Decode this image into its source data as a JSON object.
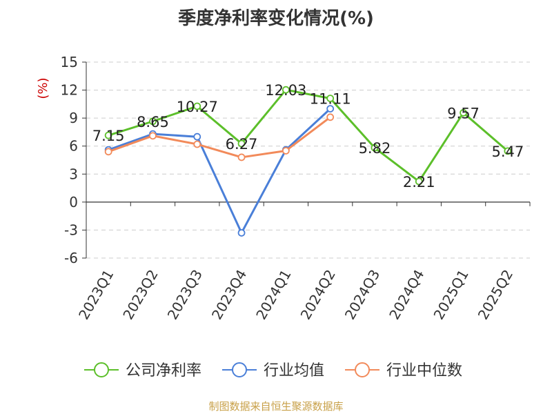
{
  "title": "季度净利率变化情况(%)",
  "source": "制图数据来自恒生聚源数据库",
  "chart_data": {
    "type": "line",
    "title": "季度净利率变化情况(%)",
    "ylabel": "(%)",
    "ylim": [
      -6,
      15
    ],
    "yticks": [
      -6,
      -3,
      0,
      3,
      6,
      9,
      12,
      15
    ],
    "grid": true,
    "legend_position": "bottom",
    "categories": [
      "2023Q1",
      "2023Q2",
      "2023Q3",
      "2023Q4",
      "2024Q1",
      "2024Q2",
      "2024Q3",
      "2024Q4",
      "2025Q1",
      "2025Q2"
    ],
    "series": [
      {
        "name": "公司净利率",
        "color": "#5cbf2a",
        "values": [
          7.15,
          8.65,
          10.27,
          6.27,
          12.03,
          11.11,
          5.82,
          2.21,
          9.57,
          5.47
        ],
        "labels": [
          "7.15",
          "8.65",
          "10.27",
          "6.27",
          "12.03",
          "11.11",
          "5.82",
          "2.21",
          "9.57",
          "5.47"
        ]
      },
      {
        "name": "行业均值",
        "color": "#4a7fd8",
        "values": [
          5.6,
          7.3,
          7.0,
          -3.3,
          5.6,
          10.0,
          null,
          null,
          null,
          null
        ]
      },
      {
        "name": "行业中位数",
        "color": "#f28a5a",
        "values": [
          5.4,
          7.1,
          6.2,
          4.8,
          5.5,
          9.1,
          null,
          null,
          null,
          null
        ]
      }
    ]
  }
}
